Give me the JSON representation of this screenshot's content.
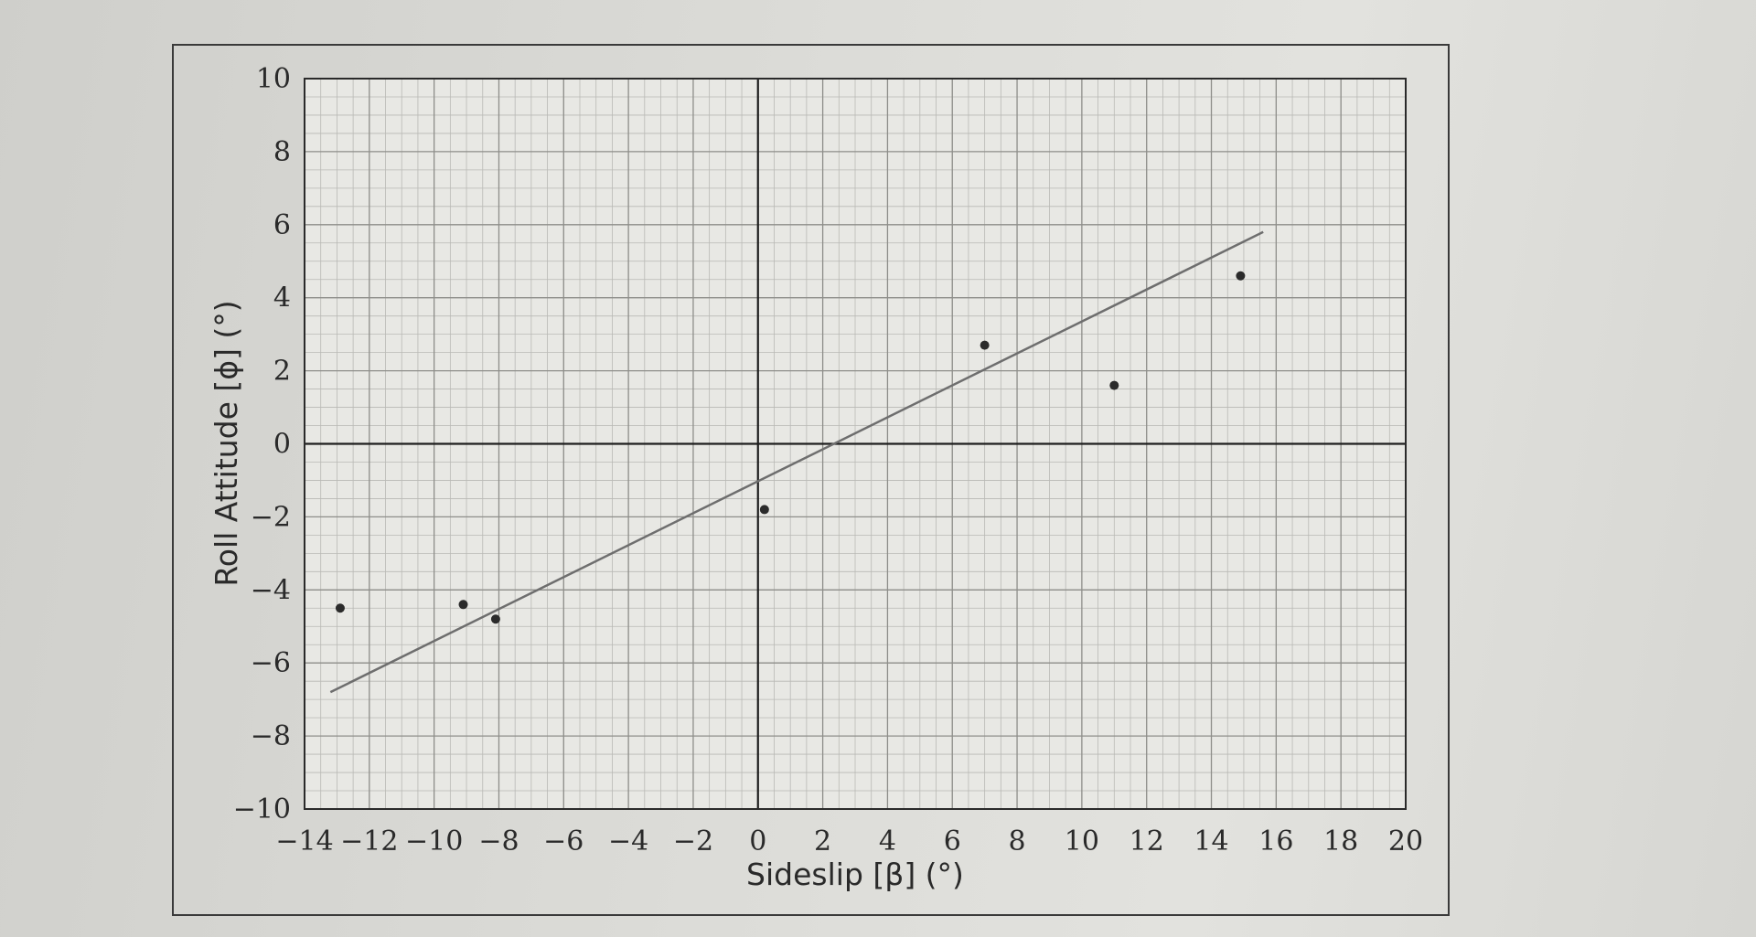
{
  "chart_data": {
    "type": "scatter",
    "xlabel": "Sideslip [β] (°)",
    "ylabel": "Roll Attitude [ϕ] (°)",
    "xlim": [
      -14,
      20
    ],
    "ylim": [
      -10,
      10
    ],
    "x_ticks": [
      -14,
      -12,
      -10,
      -8,
      -6,
      -4,
      -2,
      0,
      2,
      4,
      6,
      8,
      10,
      12,
      14,
      16,
      18,
      20
    ],
    "y_ticks": [
      -10,
      -8,
      -6,
      -4,
      -2,
      0,
      2,
      4,
      6,
      8,
      10
    ],
    "x_tick_labels": [
      "−14",
      "−12",
      "−10",
      "−8",
      "−6",
      "−4",
      "−2",
      "0",
      "2",
      "4",
      "6",
      "8",
      "10",
      "12",
      "14",
      "16",
      "18",
      "20"
    ],
    "y_tick_labels": [
      "−10",
      "−8",
      "−6",
      "−4",
      "−2",
      "0",
      "2",
      "4",
      "6",
      "8",
      "10"
    ],
    "grid": "on",
    "series": [
      {
        "type": "scatter",
        "color": "#2b2b2b",
        "points": [
          {
            "x": -12.9,
            "y": -4.5
          },
          {
            "x": -9.1,
            "y": -4.4
          },
          {
            "x": -8.1,
            "y": -4.8
          },
          {
            "x": 0.2,
            "y": -1.8
          },
          {
            "x": 7.0,
            "y": 2.7
          },
          {
            "x": 11.0,
            "y": 1.6
          },
          {
            "x": 14.9,
            "y": 4.6
          }
        ]
      },
      {
        "type": "line",
        "color": "#6e6e6e",
        "points": [
          {
            "x": -13.2,
            "y": -6.8
          },
          {
            "x": 15.6,
            "y": 5.8
          }
        ]
      }
    ]
  }
}
